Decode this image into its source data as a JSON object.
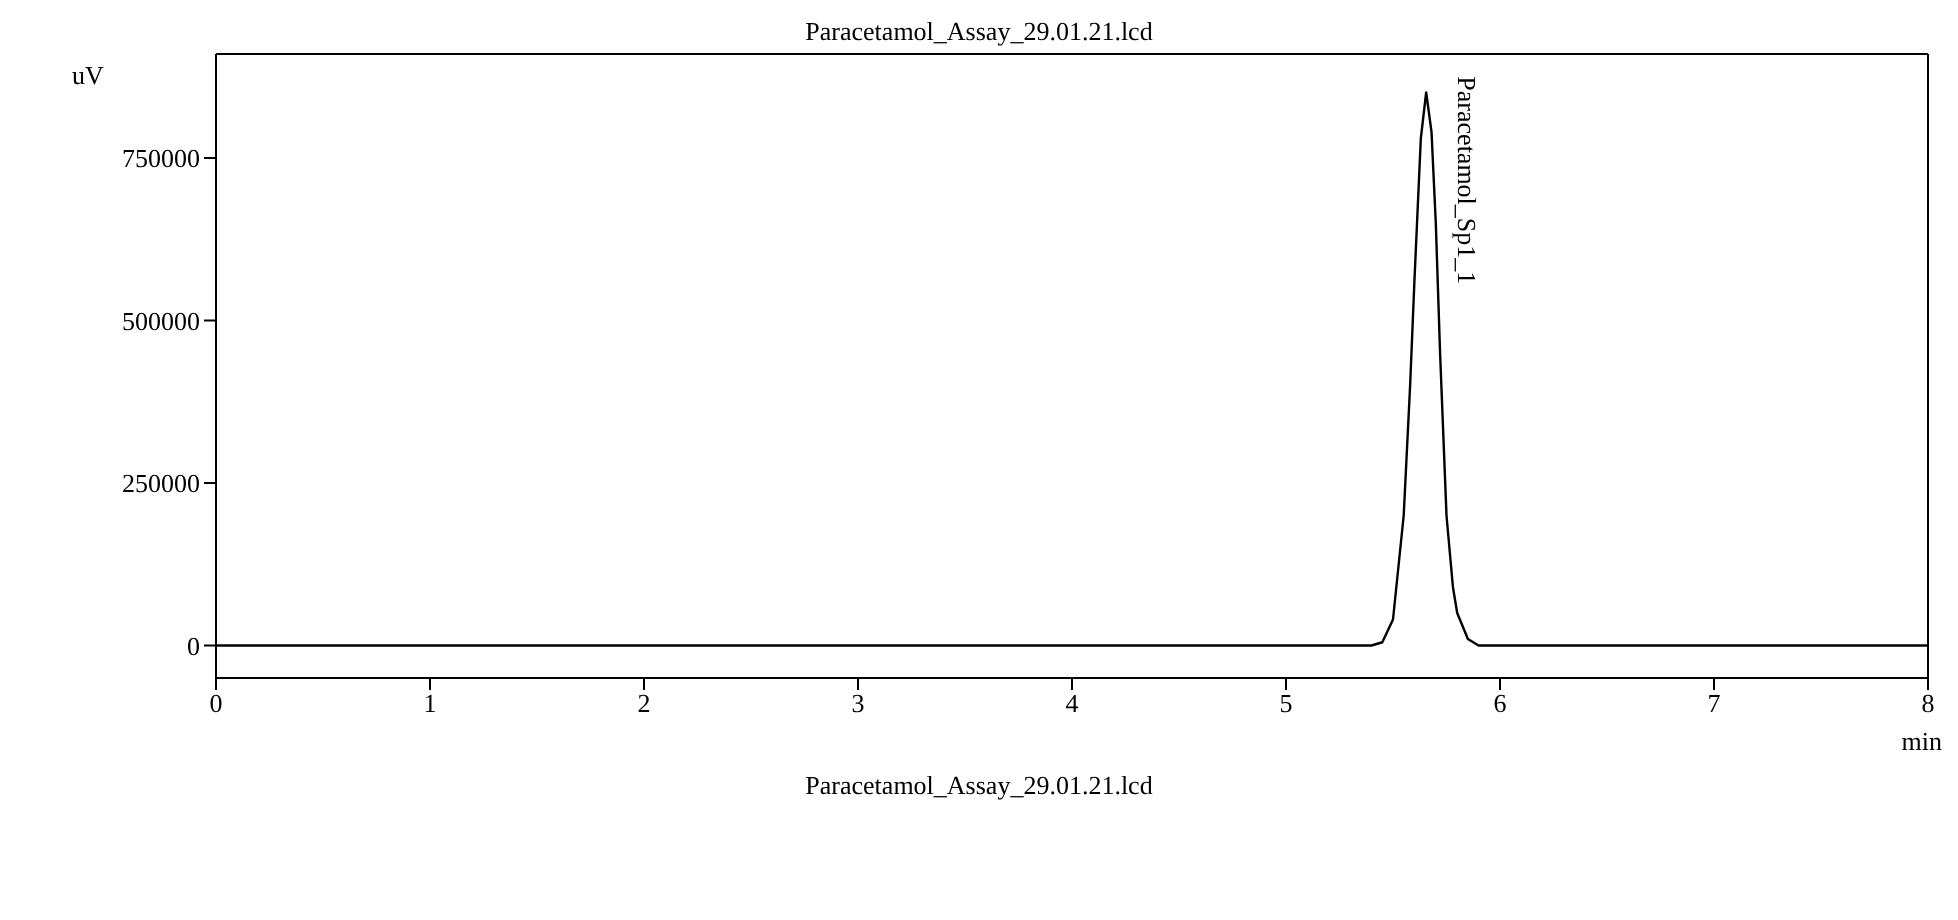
{
  "chart_data": {
    "type": "line",
    "title": "Paracetamol_Assay_29.01.21.lcd",
    "xlabel": "min",
    "ylabel": "uV",
    "color": "#000000",
    "marker": "none",
    "x": [
      0,
      5.4,
      5.45,
      5.5,
      5.55,
      5.58,
      5.6,
      5.63,
      5.655,
      5.68,
      5.7,
      5.72,
      5.75,
      5.78,
      5.8,
      5.85,
      5.9,
      8
    ],
    "values": [
      0,
      0,
      5000,
      40000,
      200000,
      400000,
      560000,
      780000,
      851000,
      790000,
      650000,
      450000,
      200000,
      90000,
      50000,
      10000,
      0,
      0
    ],
    "xlim": [
      0,
      8
    ],
    "xticks": [
      0,
      1,
      2,
      3,
      4,
      5,
      6,
      7,
      8
    ],
    "ylim": [
      -50000,
      910000
    ],
    "yticks": [
      0,
      250000,
      500000,
      750000
    ],
    "annotations": [
      {
        "text": "Paracetamol_Sp1_1",
        "x": 5.655,
        "y": 851000
      },
      "Paracetamol_Assay_29.01.21.lcd"
    ]
  }
}
